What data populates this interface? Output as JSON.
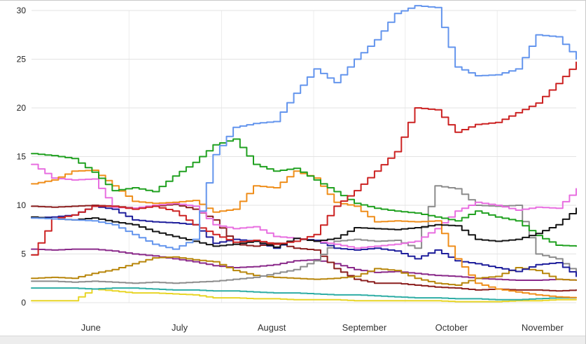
{
  "chart_data": {
    "type": "line",
    "title": "",
    "xlabel": "",
    "ylabel": "",
    "ylim": [
      0,
      30
    ],
    "yticks": [
      0,
      5,
      10,
      15,
      20,
      25,
      30
    ],
    "grid": true,
    "legend": "none",
    "x_month_labels": [
      {
        "label": "June",
        "f": 0.109
      },
      {
        "label": "July",
        "f": 0.272
      },
      {
        "label": "August",
        "f": 0.441
      },
      {
        "label": "September",
        "f": 0.611
      },
      {
        "label": "October",
        "f": 0.771
      },
      {
        "label": "November",
        "f": 0.938
      }
    ],
    "vertical_gridlines_f": [
      0.179,
      0.349,
      0.518,
      0.686,
      0.855
    ],
    "series": [
      {
        "name": "yellow",
        "color": "#e8d527",
        "values": [
          0.2,
          0.2,
          0.2,
          1.4,
          1.2,
          1.0,
          1.0,
          0.9,
          0.8,
          0.5,
          0.5,
          0.4,
          0.4,
          0.3,
          0.3,
          0.3,
          0.2,
          0.2,
          0.2,
          0.2,
          0.2,
          0.1,
          0.1,
          0.1,
          0.2,
          0.2,
          0.3,
          0.3
        ]
      },
      {
        "name": "teal",
        "color": "#2fada5",
        "values": [
          1.5,
          1.5,
          1.5,
          1.4,
          1.5,
          1.5,
          1.4,
          1.3,
          1.3,
          1.2,
          1.2,
          1.1,
          1.0,
          1.0,
          0.9,
          0.8,
          0.8,
          0.7,
          0.6,
          0.5,
          0.5,
          0.4,
          0.4,
          0.3,
          0.3,
          0.4,
          0.5,
          0.5
        ]
      },
      {
        "name": "purple",
        "color": "#8a2a8a",
        "values": [
          5.5,
          5.4,
          5.5,
          5.5,
          5.3,
          5.0,
          4.8,
          4.5,
          4.2,
          3.8,
          3.6,
          3.7,
          3.9,
          4.3,
          4.4,
          4.0,
          3.4,
          3.1,
          3.2,
          3.0,
          2.8,
          2.7,
          2.5,
          2.4,
          2.3,
          2.3,
          2.4,
          2.3
        ]
      },
      {
        "name": "maroon",
        "color": "#8b1f1f",
        "values": [
          9.9,
          9.8,
          9.9,
          10.0,
          9.9,
          9.7,
          9.9,
          10.1,
          9.6,
          8.5,
          6.0,
          5.8,
          6.1,
          5.6,
          5.4,
          3.5,
          2.4,
          2.0,
          2.0,
          1.8,
          1.6,
          1.5,
          1.3,
          1.4,
          1.3,
          1.3,
          1.2,
          1.3
        ]
      },
      {
        "name": "dark-goldenrod",
        "color": "#b8860b",
        "values": [
          2.5,
          2.6,
          2.5,
          3.0,
          3.4,
          4.0,
          4.6,
          4.7,
          4.4,
          4.2,
          3.3,
          2.8,
          2.6,
          2.5,
          2.4,
          2.5,
          2.7,
          3.5,
          3.3,
          2.5,
          2.0,
          1.8,
          2.5,
          2.7,
          3.6,
          3.3,
          2.4,
          2.3
        ]
      },
      {
        "name": "gray",
        "color": "#8c8c8c",
        "values": [
          2.2,
          2.2,
          2.1,
          2.2,
          2.1,
          2.0,
          2.1,
          2.0,
          2.1,
          2.2,
          2.4,
          2.6,
          3.0,
          3.4,
          4.3,
          6.3,
          6.5,
          6.3,
          6.4,
          5.6,
          12.0,
          11.7,
          10.0,
          9.9,
          10.0,
          5.0,
          4.5,
          3.0
        ]
      },
      {
        "name": "navy",
        "color": "#1f1f9c",
        "values": [
          8.7,
          8.8,
          9.0,
          9.9,
          9.6,
          8.5,
          8.3,
          8.2,
          8.0,
          6.1,
          6.5,
          6.3,
          5.6,
          6.6,
          6.4,
          5.6,
          5.4,
          5.6,
          5.3,
          4.5,
          5.4,
          4.3,
          4.0,
          3.6,
          3.2,
          3.9,
          4.1,
          2.7
        ]
      },
      {
        "name": "magenta",
        "color": "#e86ee0",
        "values": [
          14.2,
          12.8,
          12.6,
          12.7,
          9.8,
          9.7,
          10.0,
          10.2,
          9.9,
          8.0,
          7.6,
          7.8,
          6.8,
          6.6,
          6.3,
          6.0,
          5.6,
          5.8,
          6.0,
          6.3,
          7.6,
          9.4,
          10.3,
          10.0,
          9.5,
          9.8,
          9.7,
          11.7
        ]
      },
      {
        "name": "orange",
        "color": "#ef8e1b",
        "values": [
          12.2,
          12.6,
          13.5,
          13.6,
          12.0,
          10.4,
          10.2,
          10.3,
          10.5,
          9.3,
          9.6,
          12.0,
          11.8,
          13.5,
          12.8,
          10.3,
          9.9,
          8.3,
          8.4,
          8.3,
          8.4,
          4.5,
          2.0,
          1.4,
          1.1,
          0.8,
          0.6,
          0.5
        ]
      },
      {
        "name": "green",
        "color": "#21a121",
        "values": [
          15.3,
          15.1,
          14.8,
          13.4,
          11.5,
          11.8,
          11.4,
          13.0,
          14.4,
          16.2,
          16.8,
          14.2,
          13.5,
          13.8,
          12.6,
          11.4,
          10.2,
          9.7,
          9.4,
          9.2,
          8.8,
          8.4,
          9.4,
          8.8,
          8.4,
          6.9,
          5.9,
          5.8
        ]
      },
      {
        "name": "black",
        "color": "#141414",
        "values": [
          8.8,
          8.6,
          8.5,
          8.7,
          8.3,
          8.0,
          7.3,
          6.8,
          6.3,
          5.8,
          6.0,
          6.3,
          5.7,
          6.6,
          6.3,
          6.6,
          7.7,
          7.6,
          7.5,
          7.7,
          8.0,
          7.9,
          6.5,
          6.3,
          6.5,
          7.1,
          8.0,
          9.7
        ]
      },
      {
        "name": "red",
        "color": "#cc2222",
        "values": [
          4.9,
          8.6,
          9.0,
          9.9,
          9.9,
          9.6,
          9.9,
          9.4,
          8.0,
          7.0,
          6.2,
          6.4,
          6.0,
          6.3,
          7.0,
          9.9,
          11.5,
          13.5,
          15.5,
          20.0,
          19.8,
          17.5,
          18.3,
          18.5,
          19.5,
          20.5,
          22.5,
          24.7
        ]
      },
      {
        "name": "blue",
        "color": "#6495ed",
        "values": [
          8.7,
          8.6,
          8.5,
          8.4,
          8.0,
          7.0,
          6.0,
          5.5,
          6.5,
          15.2,
          18.0,
          18.4,
          18.6,
          21.5,
          24.0,
          22.6,
          25.0,
          27.0,
          29.7,
          30.5,
          30.3,
          24.2,
          23.3,
          23.4,
          24.0,
          27.5,
          27.3,
          25.0
        ]
      }
    ]
  },
  "colors": {
    "background": "#ffffff",
    "grid_horizontal": "#e3e3e3",
    "grid_vertical": "#ececec",
    "axis_text": "#222222",
    "frame_border": "#c9c9c9",
    "footer_strip": "#ededed"
  }
}
